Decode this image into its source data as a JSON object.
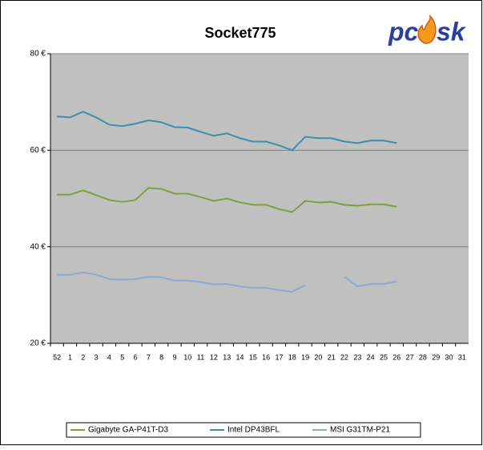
{
  "chart_data": {
    "type": "line",
    "title": "Socket775",
    "logo": [
      "pc",
      "sk"
    ],
    "categories": [
      "52",
      "1",
      "2",
      "3",
      "4",
      "5",
      "6",
      "7",
      "8",
      "9",
      "10",
      "11",
      "12",
      "13",
      "14",
      "15",
      "16",
      "17",
      "18",
      "19",
      "20",
      "21",
      "22",
      "23",
      "24",
      "25",
      "26",
      "27",
      "28",
      "29",
      "30",
      "31"
    ],
    "series": [
      {
        "name": "Gigabyte GA-P41T-D3",
        "color": "#7f9f3c",
        "values": [
          50.8,
          50.8,
          51.7,
          50.7,
          49.7,
          49.3,
          49.7,
          52.2,
          52.0,
          51.0,
          51.0,
          50.3,
          49.5,
          50.0,
          49.2,
          48.7,
          48.7,
          47.8,
          47.2,
          49.5,
          49.2,
          49.3,
          48.7,
          48.5,
          48.8,
          48.8,
          48.3,
          null,
          null,
          null,
          null,
          null
        ]
      },
      {
        "name": "Intel DP43BFL",
        "color": "#3a8fb0",
        "values": [
          67.0,
          66.8,
          68.0,
          66.8,
          65.3,
          65.0,
          65.5,
          66.2,
          65.8,
          64.8,
          64.7,
          63.8,
          63.0,
          63.5,
          62.5,
          61.8,
          61.8,
          61.0,
          60.0,
          62.8,
          62.5,
          62.5,
          61.8,
          61.5,
          62.0,
          62.0,
          61.5,
          null,
          null,
          null,
          null,
          null
        ]
      },
      {
        "name": "MSI G31TM-P21",
        "color": "#8fa8d8",
        "values": [
          34.2,
          34.2,
          34.7,
          34.2,
          33.3,
          33.2,
          33.3,
          33.8,
          33.7,
          33.0,
          33.0,
          32.7,
          32.2,
          32.3,
          31.8,
          31.5,
          31.5,
          31.0,
          30.7,
          32.0,
          null,
          null,
          33.8,
          31.8,
          32.3,
          32.3,
          32.8,
          null,
          null,
          null,
          null,
          null
        ]
      }
    ],
    "ylim": [
      20,
      80
    ],
    "yticks": [
      {
        "value": 20,
        "label": "20 €"
      },
      {
        "value": 40,
        "label": "40 €"
      },
      {
        "value": 60,
        "label": "60 €"
      },
      {
        "value": 80,
        "label": "80 €"
      }
    ],
    "grid": true,
    "legend": "bottom",
    "plot_color": "#c0c0c0"
  }
}
